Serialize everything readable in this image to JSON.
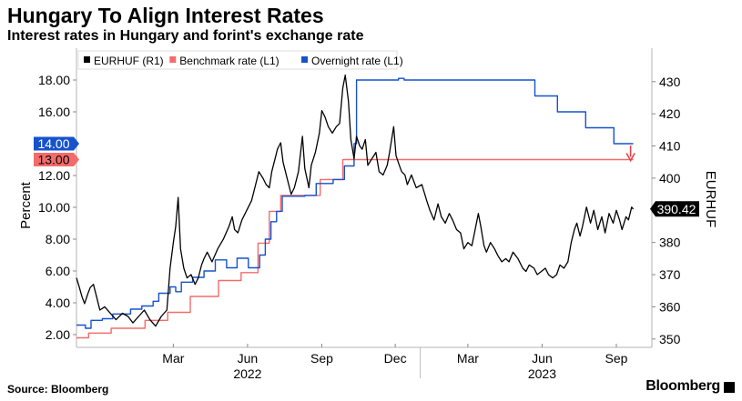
{
  "header": {
    "title": "Hungary To Align Interest Rates",
    "subtitle": "Interest rates in Hungary and forint's exchange rate"
  },
  "footer": {
    "source": "Source: Bloomberg",
    "brand": "Bloomberg"
  },
  "chart_data": {
    "type": "line",
    "legend_position": "top-left",
    "grid": false,
    "y_left": {
      "label": "Percent",
      "ticks": [
        "2.00",
        "4.00",
        "6.00",
        "8.00",
        "10.00",
        "12.00",
        "14.00",
        "16.00",
        "18.00"
      ],
      "range": [
        1.2,
        20.0
      ]
    },
    "y_right": {
      "label": "EURHUF",
      "ticks": [
        "350",
        "360",
        "370",
        "380",
        "390",
        "400",
        "410",
        "420",
        "430"
      ],
      "range": [
        347.4,
        440.4
      ]
    },
    "x_axis": {
      "range": [
        "2021-11-01",
        "2023-10-15"
      ],
      "month_labels": [
        {
          "label": "Mar",
          "date": "2022-03-01"
        },
        {
          "label": "Jun",
          "date": "2022-06-01"
        },
        {
          "label": "Sep",
          "date": "2022-09-01"
        },
        {
          "label": "Dec",
          "date": "2022-12-01"
        },
        {
          "label": "Mar",
          "date": "2023-03-01"
        },
        {
          "label": "Jun",
          "date": "2023-06-01"
        },
        {
          "label": "Sep",
          "date": "2023-09-01"
        }
      ],
      "year_labels": [
        {
          "label": "2022",
          "date": "2022-06-01"
        },
        {
          "label": "2023",
          "date": "2023-06-01"
        }
      ]
    },
    "last_value_labels": [
      {
        "series": "Overnight rate (L1)",
        "text": "14.00",
        "value": 14.0,
        "axis": "left",
        "color": "#1652cc"
      },
      {
        "series": "Benchmark rate (L1)",
        "text": "13.00",
        "value": 13.0,
        "axis": "left",
        "color": "#f36b6b"
      },
      {
        "series": "EURHUF (R1)",
        "text": "390.42",
        "value": 390.42,
        "axis": "right",
        "color": "#000000"
      }
    ],
    "series": [
      {
        "name": "EURHUF (R1)",
        "axis": "right",
        "color": "#000000",
        "style": "line",
        "points": [
          [
            "2021-11-01",
            369.0
          ],
          [
            "2021-11-04",
            366.5
          ],
          [
            "2021-11-08",
            363.0
          ],
          [
            "2021-11-11",
            361.0
          ],
          [
            "2021-11-15",
            364.0
          ],
          [
            "2021-11-18",
            366.0
          ],
          [
            "2021-11-22",
            367.0
          ],
          [
            "2021-11-26",
            363.0
          ],
          [
            "2021-11-30",
            359.0
          ],
          [
            "2021-12-06",
            360.0
          ],
          [
            "2021-12-13",
            358.0
          ],
          [
            "2021-12-20",
            356.0
          ],
          [
            "2021-12-28",
            358.0
          ],
          [
            "2022-01-04",
            357.0
          ],
          [
            "2022-01-10",
            355.0
          ],
          [
            "2022-01-17",
            357.0
          ],
          [
            "2022-01-24",
            359.0
          ],
          [
            "2022-01-31",
            356.0
          ],
          [
            "2022-02-07",
            354.0
          ],
          [
            "2022-02-14",
            357.0
          ],
          [
            "2022-02-21",
            359.0
          ],
          [
            "2022-02-25",
            372.0
          ],
          [
            "2022-03-01",
            380.0
          ],
          [
            "2022-03-04",
            385.0
          ],
          [
            "2022-03-07",
            394.0
          ],
          [
            "2022-03-10",
            378.0
          ],
          [
            "2022-03-14",
            372.0
          ],
          [
            "2022-03-18",
            369.0
          ],
          [
            "2022-03-23",
            370.0
          ],
          [
            "2022-03-28",
            367.0
          ],
          [
            "2022-04-01",
            369.0
          ],
          [
            "2022-04-05",
            373.0
          ],
          [
            "2022-04-08",
            375.0
          ],
          [
            "2022-04-12",
            377.0
          ],
          [
            "2022-04-18",
            374.0
          ],
          [
            "2022-04-25",
            378.0
          ],
          [
            "2022-05-02",
            381.0
          ],
          [
            "2022-05-09",
            385.0
          ],
          [
            "2022-05-13",
            388.0
          ],
          [
            "2022-05-16",
            384.0
          ],
          [
            "2022-05-20",
            383.0
          ],
          [
            "2022-05-25",
            387.0
          ],
          [
            "2022-05-31",
            390.0
          ],
          [
            "2022-06-06",
            393.0
          ],
          [
            "2022-06-10",
            397.0
          ],
          [
            "2022-06-15",
            402.0
          ],
          [
            "2022-06-20",
            400.0
          ],
          [
            "2022-06-24",
            398.0
          ],
          [
            "2022-06-28",
            397.0
          ],
          [
            "2022-07-01",
            402.0
          ],
          [
            "2022-07-05",
            406.0
          ],
          [
            "2022-07-08",
            409.0
          ],
          [
            "2022-07-12",
            411.0
          ],
          [
            "2022-07-15",
            405.0
          ],
          [
            "2022-07-20",
            400.0
          ],
          [
            "2022-07-25",
            395.0
          ],
          [
            "2022-07-29",
            397.0
          ],
          [
            "2022-08-03",
            402.0
          ],
          [
            "2022-08-08",
            413.0
          ],
          [
            "2022-08-11",
            403.0
          ],
          [
            "2022-08-16",
            397.0
          ],
          [
            "2022-08-19",
            404.0
          ],
          [
            "2022-08-24",
            408.0
          ],
          [
            "2022-08-29",
            414.0
          ],
          [
            "2022-09-01",
            421.0
          ],
          [
            "2022-09-05",
            419.0
          ],
          [
            "2022-09-09",
            416.0
          ],
          [
            "2022-09-14",
            414.0
          ],
          [
            "2022-09-19",
            416.0
          ],
          [
            "2022-09-23",
            417.0
          ],
          [
            "2022-09-27",
            428.0
          ],
          [
            "2022-09-30",
            432.0
          ],
          [
            "2022-10-04",
            424.0
          ],
          [
            "2022-10-07",
            412.0
          ],
          [
            "2022-10-11",
            406.0
          ],
          [
            "2022-10-14",
            413.0
          ],
          [
            "2022-10-18",
            410.0
          ],
          [
            "2022-10-21",
            409.0
          ],
          [
            "2022-10-25",
            412.0
          ],
          [
            "2022-10-28",
            404.0
          ],
          [
            "2022-11-02",
            406.0
          ],
          [
            "2022-11-07",
            408.0
          ],
          [
            "2022-11-11",
            402.0
          ],
          [
            "2022-11-16",
            401.0
          ],
          [
            "2022-11-21",
            404.0
          ],
          [
            "2022-11-24",
            408.0
          ],
          [
            "2022-11-29",
            416.0
          ],
          [
            "2022-12-02",
            407.0
          ],
          [
            "2022-12-06",
            404.0
          ],
          [
            "2022-12-09",
            402.0
          ],
          [
            "2022-12-13",
            401.0
          ],
          [
            "2022-12-16",
            398.0
          ],
          [
            "2022-12-21",
            401.0
          ],
          [
            "2022-12-27",
            397.0
          ],
          [
            "2023-01-03",
            398.0
          ],
          [
            "2023-01-09",
            393.0
          ],
          [
            "2023-01-13",
            390.0
          ],
          [
            "2023-01-18",
            387.0
          ],
          [
            "2023-01-23",
            392.0
          ],
          [
            "2023-01-27",
            388.0
          ],
          [
            "2023-02-01",
            386.0
          ],
          [
            "2023-02-06",
            389.0
          ],
          [
            "2023-02-10",
            387.0
          ],
          [
            "2023-02-15",
            384.0
          ],
          [
            "2023-02-20",
            383.0
          ],
          [
            "2023-02-24",
            378.0
          ],
          [
            "2023-03-01",
            380.0
          ],
          [
            "2023-03-06",
            379.0
          ],
          [
            "2023-03-10",
            384.0
          ],
          [
            "2023-03-14",
            389.0
          ],
          [
            "2023-03-17",
            385.0
          ],
          [
            "2023-03-21",
            379.0
          ],
          [
            "2023-03-24",
            377.0
          ],
          [
            "2023-03-29",
            380.0
          ],
          [
            "2023-04-03",
            378.0
          ],
          [
            "2023-04-07",
            376.0
          ],
          [
            "2023-04-12",
            374.0
          ],
          [
            "2023-04-17",
            375.0
          ],
          [
            "2023-04-21",
            374.0
          ],
          [
            "2023-04-26",
            377.0
          ],
          [
            "2023-05-02",
            375.0
          ],
          [
            "2023-05-08",
            372.0
          ],
          [
            "2023-05-12",
            371.0
          ],
          [
            "2023-05-16",
            373.0
          ],
          [
            "2023-05-22",
            372.0
          ],
          [
            "2023-05-26",
            370.0
          ],
          [
            "2023-05-31",
            371.0
          ],
          [
            "2023-06-05",
            372.0
          ],
          [
            "2023-06-09",
            370.0
          ],
          [
            "2023-06-14",
            369.0
          ],
          [
            "2023-06-19",
            370.0
          ],
          [
            "2023-06-23",
            373.0
          ],
          [
            "2023-06-28",
            372.0
          ],
          [
            "2023-07-03",
            374.0
          ],
          [
            "2023-07-07",
            380.0
          ],
          [
            "2023-07-11",
            384.0
          ],
          [
            "2023-07-14",
            386.0
          ],
          [
            "2023-07-18",
            382.0
          ],
          [
            "2023-07-21",
            385.0
          ],
          [
            "2023-07-26",
            391.0
          ],
          [
            "2023-07-31",
            386.0
          ],
          [
            "2023-08-04",
            390.0
          ],
          [
            "2023-08-09",
            384.0
          ],
          [
            "2023-08-14",
            388.0
          ],
          [
            "2023-08-18",
            383.0
          ],
          [
            "2023-08-23",
            389.0
          ],
          [
            "2023-08-28",
            386.0
          ],
          [
            "2023-09-01",
            390.0
          ],
          [
            "2023-09-05",
            387.0
          ],
          [
            "2023-09-08",
            384.0
          ],
          [
            "2023-09-13",
            388.0
          ],
          [
            "2023-09-16",
            387.0
          ],
          [
            "2023-09-20",
            391.0
          ],
          [
            "2023-09-22",
            390.4
          ]
        ]
      },
      {
        "name": "Benchmark rate (L1)",
        "axis": "left",
        "color": "#f36b6b",
        "style": "step",
        "points": [
          [
            "2021-11-01",
            1.8
          ],
          [
            "2021-11-16",
            2.1
          ],
          [
            "2021-12-14",
            2.4
          ],
          [
            "2022-01-25",
            2.9
          ],
          [
            "2022-02-22",
            3.4
          ],
          [
            "2022-03-22",
            4.4
          ],
          [
            "2022-04-26",
            5.4
          ],
          [
            "2022-05-24",
            5.9
          ],
          [
            "2022-06-14",
            7.75
          ],
          [
            "2022-06-28",
            9.75
          ],
          [
            "2022-07-12",
            10.75
          ],
          [
            "2022-08-30",
            11.75
          ],
          [
            "2022-09-27",
            13.0
          ],
          [
            "2023-09-22",
            13.0
          ]
        ]
      },
      {
        "name": "Overnight rate (L1)",
        "axis": "left",
        "color": "#1652cc",
        "style": "step",
        "points": [
          [
            "2021-11-01",
            2.6
          ],
          [
            "2021-11-12",
            2.4
          ],
          [
            "2021-11-19",
            2.9
          ],
          [
            "2021-12-03",
            3.0
          ],
          [
            "2021-12-16",
            3.3
          ],
          [
            "2022-01-07",
            3.6
          ],
          [
            "2022-01-21",
            3.8
          ],
          [
            "2022-02-04",
            4.1
          ],
          [
            "2022-02-11",
            4.6
          ],
          [
            "2022-02-25",
            5.0
          ],
          [
            "2022-03-04",
            4.7
          ],
          [
            "2022-03-11",
            5.3
          ],
          [
            "2022-03-25",
            5.6
          ],
          [
            "2022-04-08",
            6.0
          ],
          [
            "2022-04-22",
            6.7
          ],
          [
            "2022-05-06",
            6.2
          ],
          [
            "2022-05-19",
            6.8
          ],
          [
            "2022-06-02",
            6.2
          ],
          [
            "2022-06-16",
            7.0
          ],
          [
            "2022-06-23",
            8.0
          ],
          [
            "2022-06-30",
            9.1
          ],
          [
            "2022-07-07",
            9.75
          ],
          [
            "2022-07-14",
            10.7
          ],
          [
            "2022-08-11",
            10.75
          ],
          [
            "2022-08-25",
            11.5
          ],
          [
            "2022-09-15",
            11.75
          ],
          [
            "2022-09-29",
            12.6
          ],
          [
            "2022-10-11",
            14.0
          ],
          [
            "2022-10-14",
            18.0
          ],
          [
            "2022-12-02",
            18.0
          ],
          [
            "2022-12-05",
            18.1
          ],
          [
            "2022-12-12",
            18.0
          ],
          [
            "2023-05-23",
            17.0
          ],
          [
            "2023-06-20",
            16.0
          ],
          [
            "2023-07-25",
            15.0
          ],
          [
            "2023-08-29",
            14.0
          ],
          [
            "2023-09-22",
            14.0
          ]
        ]
      }
    ]
  }
}
